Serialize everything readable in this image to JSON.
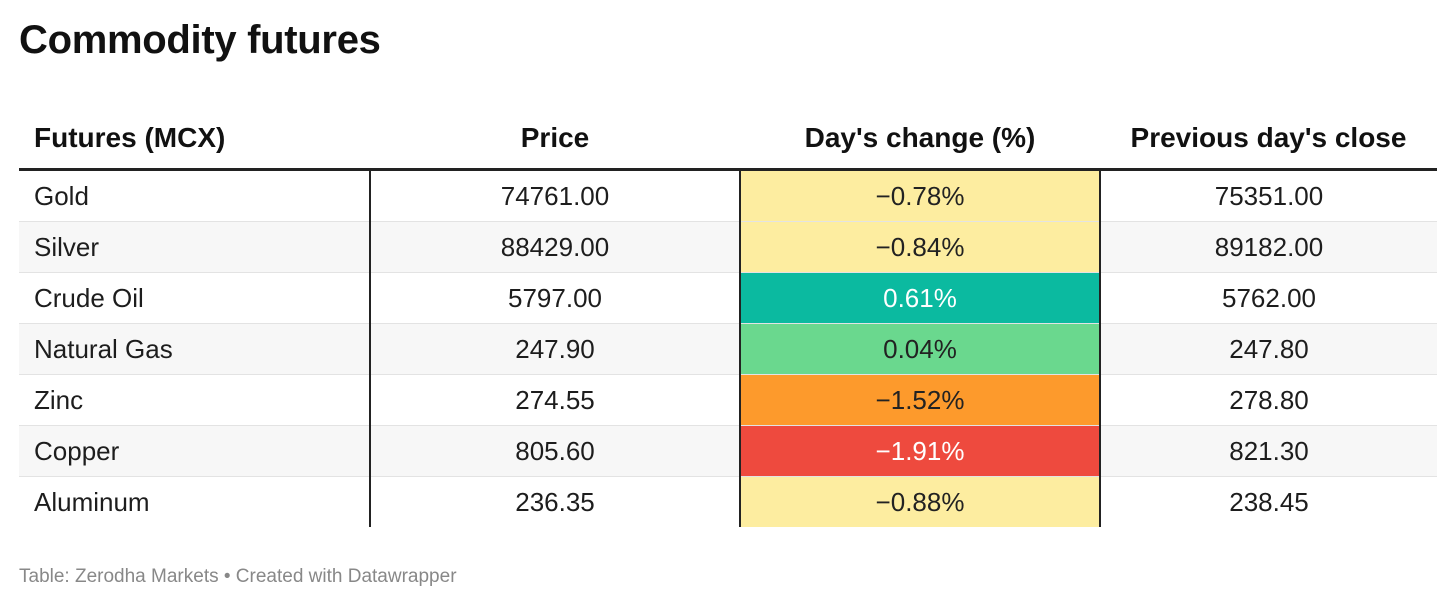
{
  "title": "Commodity futures",
  "footer": "Table: Zerodha Markets • Created with Datawrapper",
  "chart_data": {
    "type": "table",
    "title": "Commodity futures",
    "columns": [
      "Futures (MCX)",
      "Price",
      "Day's change (%)",
      "Previous day's close"
    ],
    "rows": [
      {
        "name": "Gold",
        "price": "74761.00",
        "change": "−0.78%",
        "change_value": -0.78,
        "prev_close": "75351.00",
        "color": "#fdeda0"
      },
      {
        "name": "Silver",
        "price": "88429.00",
        "change": "−0.84%",
        "change_value": -0.84,
        "prev_close": "89182.00",
        "color": "#fdeda0"
      },
      {
        "name": "Crude Oil",
        "price": "5797.00",
        "change": "0.61%",
        "change_value": 0.61,
        "prev_close": "5762.00",
        "color": "#0bbaa0"
      },
      {
        "name": "Natural Gas",
        "price": "247.90",
        "change": "0.04%",
        "change_value": 0.04,
        "prev_close": "247.80",
        "color": "#6ad88e"
      },
      {
        "name": "Zinc",
        "price": "274.55",
        "change": "−1.52%",
        "change_value": -1.52,
        "prev_close": "278.80",
        "color": "#fd9a2c"
      },
      {
        "name": "Copper",
        "price": "805.60",
        "change": "−1.91%",
        "change_value": -1.91,
        "prev_close": "821.30",
        "color": "#ee4a3e"
      },
      {
        "name": "Aluminum",
        "price": "236.35",
        "change": "−0.88%",
        "change_value": -0.88,
        "prev_close": "238.45",
        "color": "#fdeda0"
      }
    ]
  }
}
